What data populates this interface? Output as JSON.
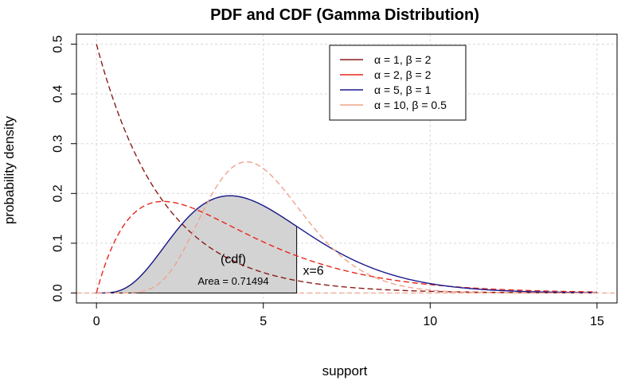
{
  "chart_data": {
    "type": "line",
    "title": "PDF and CDF (Gamma Distribution)",
    "xlabel": "support",
    "ylabel": "probability density",
    "xlim": [
      -0.6,
      15.6
    ],
    "ylim": [
      -0.02,
      0.52
    ],
    "x_ticks": [
      0,
      5,
      10,
      15
    ],
    "x_tick_labels": [
      "0",
      "5",
      "10",
      "15"
    ],
    "y_ticks": [
      0.0,
      0.1,
      0.2,
      0.3,
      0.4,
      0.5
    ],
    "y_tick_labels": [
      "0.0",
      "0.1",
      "0.2",
      "0.3",
      "0.4",
      "0.5"
    ],
    "grid": true,
    "legend_position": "top-right",
    "series": [
      {
        "name": "α = 1, β = 2",
        "distribution": "gamma",
        "shape": 1,
        "scale": 2,
        "color": "#8b1a1a",
        "linestyle": "dashed",
        "x_range": [
          0,
          15
        ],
        "x": [
          0,
          1,
          2,
          3,
          4,
          5,
          6,
          8,
          10,
          12,
          15
        ],
        "y": [
          0.5,
          0.3033,
          0.1839,
          0.1116,
          0.0677,
          0.041,
          0.0249,
          0.0092,
          0.0034,
          0.0012,
          0.0003
        ]
      },
      {
        "name": "α = 2, β = 2",
        "distribution": "gamma",
        "shape": 2,
        "scale": 2,
        "color": "#e8261c",
        "linestyle": "dashed",
        "x_range": [
          0,
          15
        ],
        "x": [
          0,
          1,
          2,
          3,
          4,
          5,
          6,
          8,
          10,
          12,
          15
        ],
        "y": [
          0,
          0.1516,
          0.1839,
          0.1673,
          0.1353,
          0.1026,
          0.0747,
          0.0366,
          0.0168,
          0.0074,
          0.0021
        ]
      },
      {
        "name": "α = 5, β = 1",
        "distribution": "gamma",
        "shape": 5,
        "scale": 1,
        "color": "#1a1a8c",
        "linestyle": "solid",
        "x_range": [
          0,
          15
        ],
        "x": [
          0,
          1,
          2,
          3,
          4,
          5,
          6,
          8,
          10,
          12,
          15
        ],
        "y": [
          0,
          0.0153,
          0.0902,
          0.168,
          0.1954,
          0.1755,
          0.1339,
          0.0573,
          0.0189,
          0.0053,
          0.0007
        ]
      },
      {
        "name": "α = 10, β = 0.5",
        "distribution": "gamma",
        "shape": 10,
        "scale": 0.5,
        "color": "#f0a48c",
        "linestyle": "dashed",
        "x_range": [
          0,
          15
        ],
        "x": [
          0,
          1,
          2,
          3,
          4,
          4.5,
          5,
          6,
          8,
          10,
          12,
          15
        ],
        "y": [
          0,
          0.0002,
          0.0132,
          0.0811,
          0.1892,
          0.2635,
          0.2502,
          0.1748,
          0.0343,
          0.0014,
          0.0001,
          0
        ]
      }
    ],
    "shaded_region": {
      "series": "α = 5, β = 1",
      "x_from": 0,
      "x_to": 6,
      "fill": "#d3d3d3"
    },
    "annotations": [
      {
        "text": "(cdf)",
        "x": 4.1,
        "y": 0.06
      },
      {
        "text": "Area = 0.71494",
        "x": 4.1,
        "y": 0.017
      },
      {
        "text": "x=6",
        "x": 6.5,
        "y": 0.037
      }
    ],
    "reference_line": {
      "y": 0,
      "color": "#f0a48c",
      "linestyle": "dashed"
    }
  }
}
